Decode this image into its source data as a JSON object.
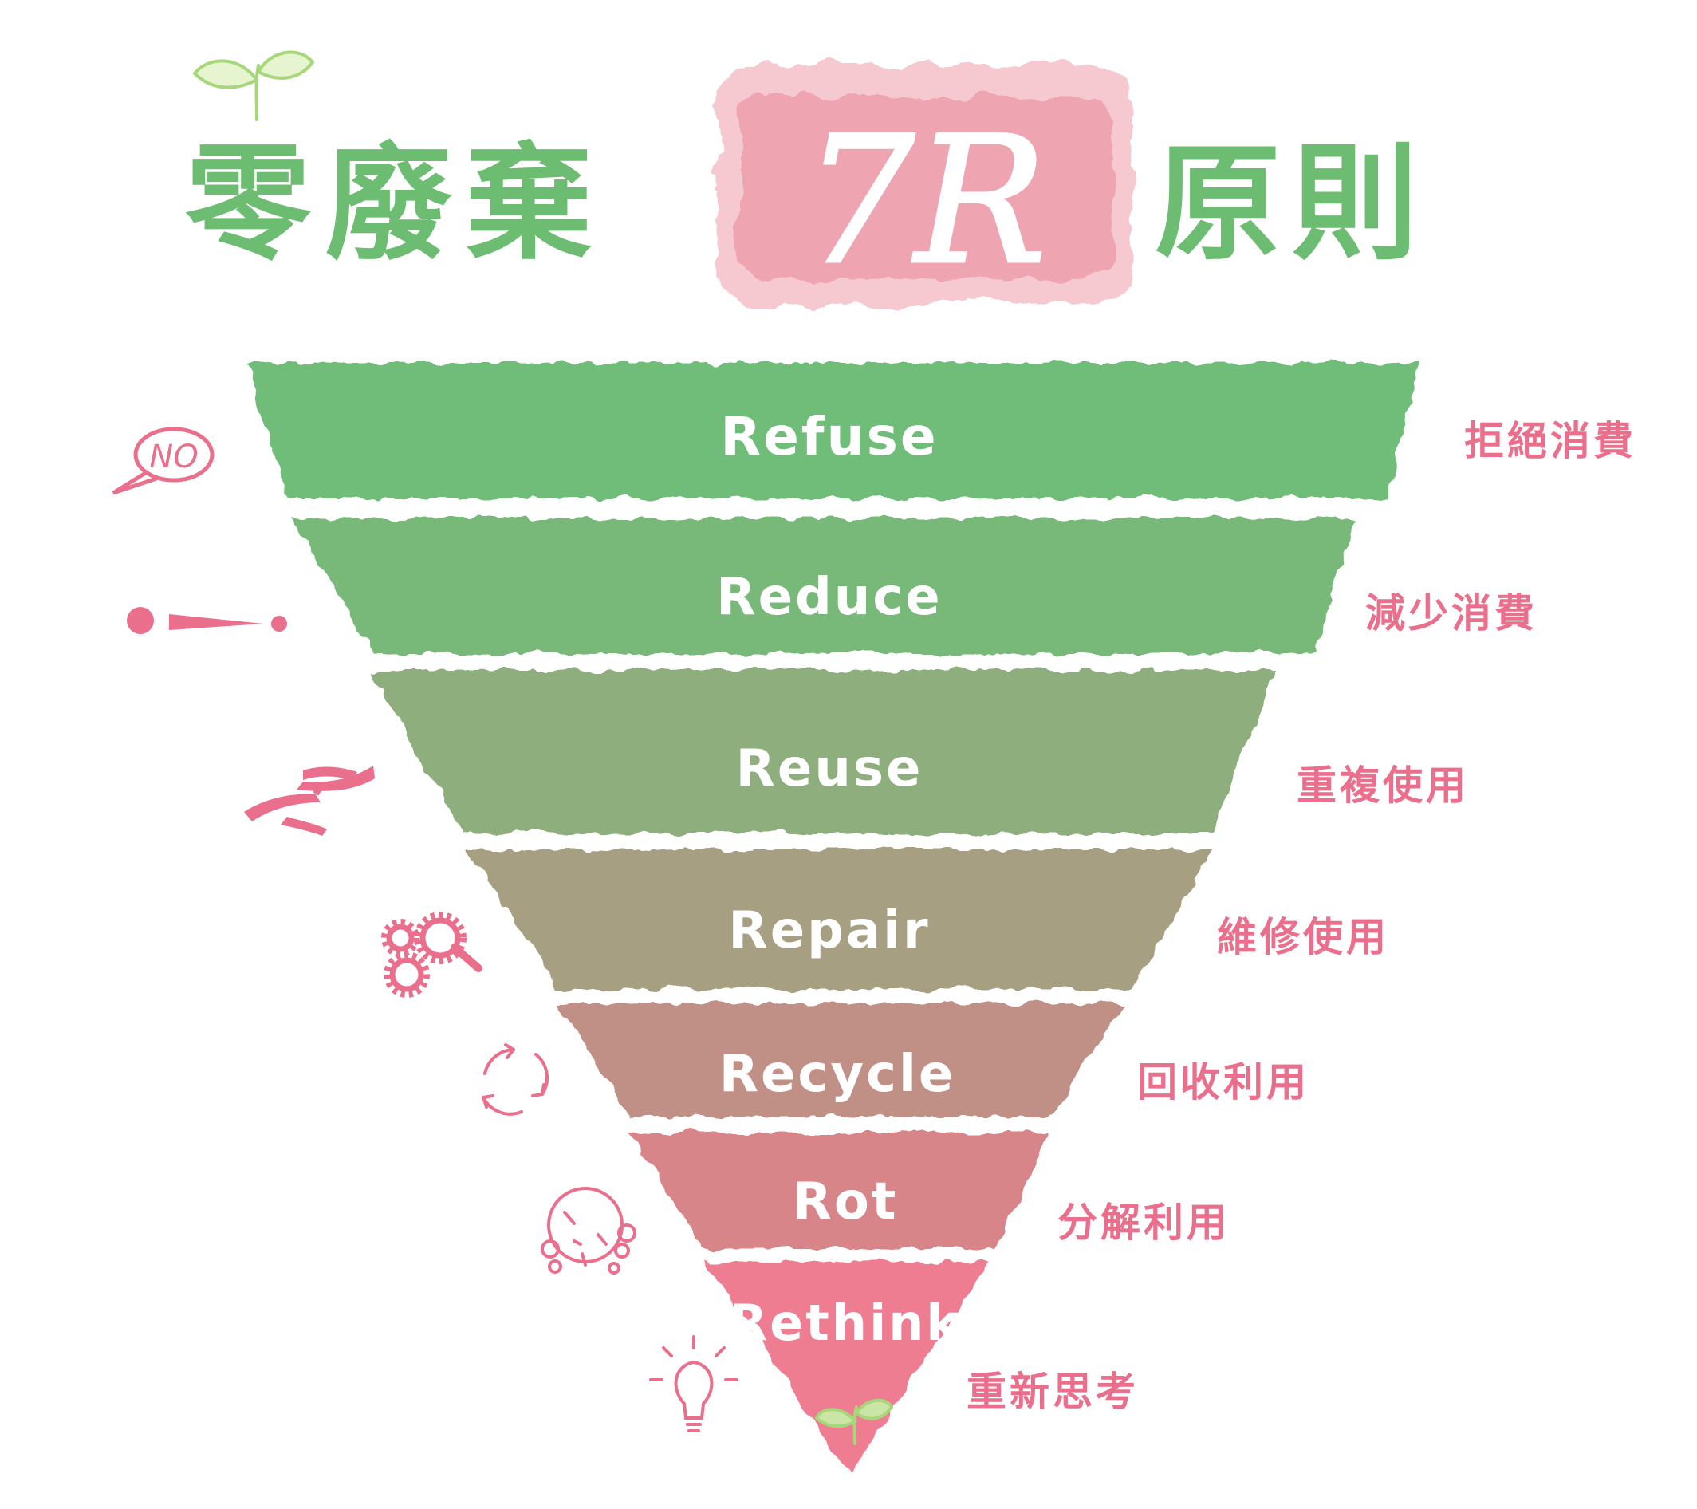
{
  "title": {
    "prefix": "零廢棄",
    "highlight": "7R",
    "suffix": "原則"
  },
  "tiers": [
    {
      "label": "Refuse",
      "chinese": "拒絕消費",
      "color": "#6fbd79",
      "icon": "no-speech-bubble-icon"
    },
    {
      "label": "Reduce",
      "chinese": "減少消費",
      "color": "#78b97a",
      "icon": "exclamation-dots-icon"
    },
    {
      "label": "Reuse",
      "chinese": "重複使用",
      "color": "#8fae7d",
      "icon": "hands-passing-icon"
    },
    {
      "label": "Repair",
      "chinese": "維修使用",
      "color": "#a79f82",
      "icon": "gears-wrench-icon"
    },
    {
      "label": "Recycle",
      "chinese": "回收利用",
      "color": "#c08f86",
      "icon": "recycle-arrows-icon"
    },
    {
      "label": "Rot",
      "chinese": "分解利用",
      "color": "#d8858a",
      "icon": "decompose-circles-icon"
    },
    {
      "label": "Rethink",
      "chinese": "重新思考",
      "color": "#ee7d92",
      "icon": "lightbulb-icon"
    }
  ],
  "colors": {
    "title_green": "#6cbc72",
    "accent_pink": "#ea6f8c",
    "highlight_pink": "#e98a9a",
    "tier_text": "#ffffff"
  }
}
